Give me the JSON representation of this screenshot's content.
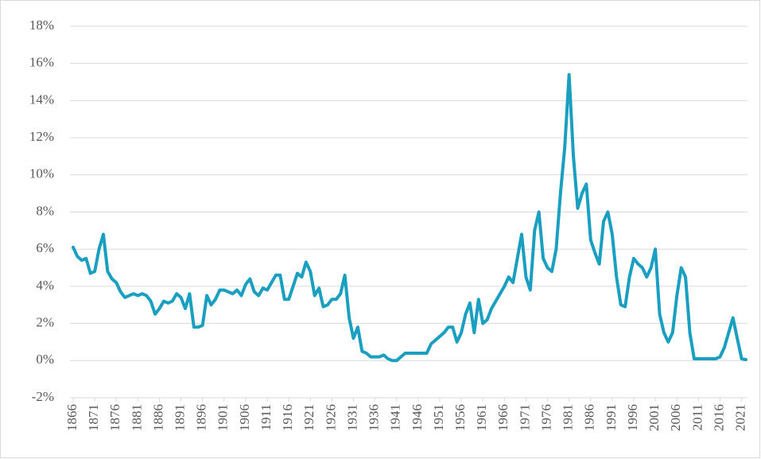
{
  "chart_data": {
    "type": "line",
    "x": [
      1866,
      1867,
      1868,
      1869,
      1870,
      1871,
      1872,
      1873,
      1874,
      1875,
      1876,
      1877,
      1878,
      1879,
      1880,
      1881,
      1882,
      1883,
      1884,
      1885,
      1886,
      1887,
      1888,
      1889,
      1890,
      1891,
      1892,
      1893,
      1894,
      1895,
      1896,
      1897,
      1898,
      1899,
      1900,
      1901,
      1902,
      1903,
      1904,
      1905,
      1906,
      1907,
      1908,
      1909,
      1910,
      1911,
      1912,
      1913,
      1914,
      1915,
      1916,
      1917,
      1918,
      1919,
      1920,
      1921,
      1922,
      1923,
      1924,
      1925,
      1926,
      1927,
      1928,
      1929,
      1930,
      1931,
      1932,
      1933,
      1934,
      1935,
      1936,
      1937,
      1938,
      1939,
      1940,
      1941,
      1942,
      1943,
      1944,
      1945,
      1946,
      1947,
      1948,
      1949,
      1950,
      1951,
      1952,
      1953,
      1954,
      1955,
      1956,
      1957,
      1958,
      1959,
      1960,
      1961,
      1962,
      1963,
      1964,
      1965,
      1966,
      1967,
      1968,
      1969,
      1970,
      1971,
      1972,
      1973,
      1974,
      1975,
      1976,
      1977,
      1978,
      1979,
      1980,
      1981,
      1982,
      1983,
      1984,
      1985,
      1986,
      1987,
      1988,
      1989,
      1990,
      1991,
      1992,
      1993,
      1994,
      1995,
      1996,
      1997,
      1998,
      1999,
      2000,
      2001,
      2002,
      2003,
      2004,
      2005,
      2006,
      2007,
      2008,
      2009,
      2010,
      2011,
      2012,
      2013,
      2014,
      2015,
      2016,
      2017,
      2018,
      2019,
      2020,
      2021,
      2022
    ],
    "series": [
      {
        "color": "#1a9fc0",
        "values": [
          6.1,
          5.6,
          5.4,
          5.5,
          4.7,
          4.8,
          6.0,
          6.8,
          4.8,
          4.4,
          4.2,
          3.7,
          3.4,
          3.5,
          3.6,
          3.5,
          3.6,
          3.5,
          3.2,
          2.5,
          2.8,
          3.2,
          3.1,
          3.2,
          3.6,
          3.4,
          2.8,
          3.6,
          1.8,
          1.8,
          1.9,
          3.5,
          3.0,
          3.3,
          3.8,
          3.8,
          3.7,
          3.6,
          3.8,
          3.5,
          4.1,
          4.4,
          3.7,
          3.5,
          3.9,
          3.8,
          4.2,
          4.6,
          4.6,
          3.3,
          3.3,
          4.0,
          4.7,
          4.5,
          5.3,
          4.8,
          3.5,
          3.9,
          2.9,
          3.0,
          3.3,
          3.3,
          3.6,
          4.6,
          2.3,
          1.2,
          1.8,
          0.5,
          0.4,
          0.2,
          0.2,
          0.2,
          0.3,
          0.1,
          0.0,
          0.0,
          0.2,
          0.4,
          0.4,
          0.4,
          0.4,
          0.4,
          0.4,
          0.9,
          1.1,
          1.3,
          1.5,
          1.8,
          1.8,
          1.0,
          1.5,
          2.5,
          3.1,
          1.5,
          3.3,
          2.0,
          2.2,
          2.8,
          3.2,
          3.6,
          4.0,
          4.5,
          4.2,
          5.5,
          6.8,
          4.5,
          3.8,
          7.0,
          8.0,
          5.5,
          5.0,
          4.8,
          6.0,
          9.0,
          11.5,
          15.4,
          11.0,
          8.2,
          9.0,
          9.5,
          6.5,
          5.8,
          5.2,
          7.5,
          8.0,
          6.8,
          4.5,
          3.0,
          2.9,
          4.5,
          5.5,
          5.2,
          5.0,
          4.5,
          5.0,
          6.0,
          2.5,
          1.5,
          1.0,
          1.5,
          3.5,
          5.0,
          4.5,
          1.5,
          0.1,
          0.1,
          0.1,
          0.1,
          0.1,
          0.1,
          0.2,
          0.7,
          1.5,
          2.3,
          1.2,
          0.1,
          0.05
        ]
      }
    ],
    "xlim": [
      1866,
      2022
    ],
    "xticks": [
      1866,
      1871,
      1876,
      1881,
      1886,
      1891,
      1896,
      1901,
      1906,
      1911,
      1916,
      1921,
      1926,
      1931,
      1936,
      1941,
      1946,
      1951,
      1956,
      1961,
      1966,
      1971,
      1976,
      1981,
      1986,
      1991,
      1996,
      2001,
      2006,
      2011,
      2016,
      2021
    ],
    "ylim": [
      -2,
      18
    ],
    "yticks": [
      {
        "value": -2,
        "label": "-2%"
      },
      {
        "value": 0,
        "label": "0%"
      },
      {
        "value": 2,
        "label": "2%"
      },
      {
        "value": 4,
        "label": "4%"
      },
      {
        "value": 6,
        "label": "6%"
      },
      {
        "value": 8,
        "label": "8%"
      },
      {
        "value": 10,
        "label": "10%"
      },
      {
        "value": 12,
        "label": "12%"
      },
      {
        "value": 14,
        "label": "14%"
      },
      {
        "value": 16,
        "label": "16%"
      },
      {
        "value": 18,
        "label": "18%"
      }
    ],
    "grid": true
  }
}
